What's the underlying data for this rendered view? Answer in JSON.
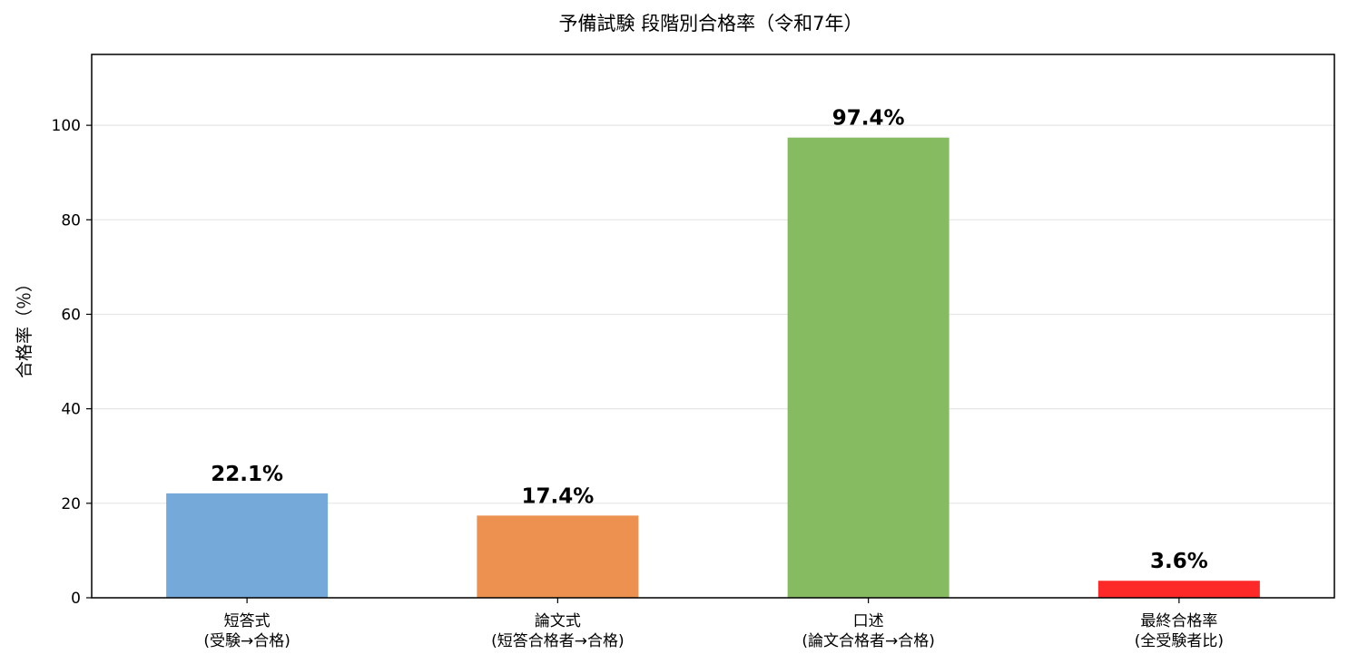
{
  "chart_data": {
    "type": "bar",
    "title": "予備試験 段階別合格率（令和7年）",
    "xlabel": "",
    "ylabel": "合格率（％）",
    "ylim": [
      0,
      115
    ],
    "yticks": [
      0,
      20,
      40,
      60,
      80,
      100
    ],
    "grid": true,
    "categories": [
      [
        "短答式",
        "(受験→合格)"
      ],
      [
        "論文式",
        "(短答合格者→合格)"
      ],
      [
        "口述",
        "(論文合格者→合格)"
      ],
      [
        "最終合格率",
        "(全受験者比)"
      ]
    ],
    "values": [
      22.1,
      17.4,
      97.4,
      3.6
    ],
    "value_labels": [
      "22.1%",
      "17.4%",
      "97.4%",
      "3.6%"
    ],
    "colors": [
      "#75a9da",
      "#ed9151",
      "#87bb62",
      "#fd2929"
    ]
  }
}
